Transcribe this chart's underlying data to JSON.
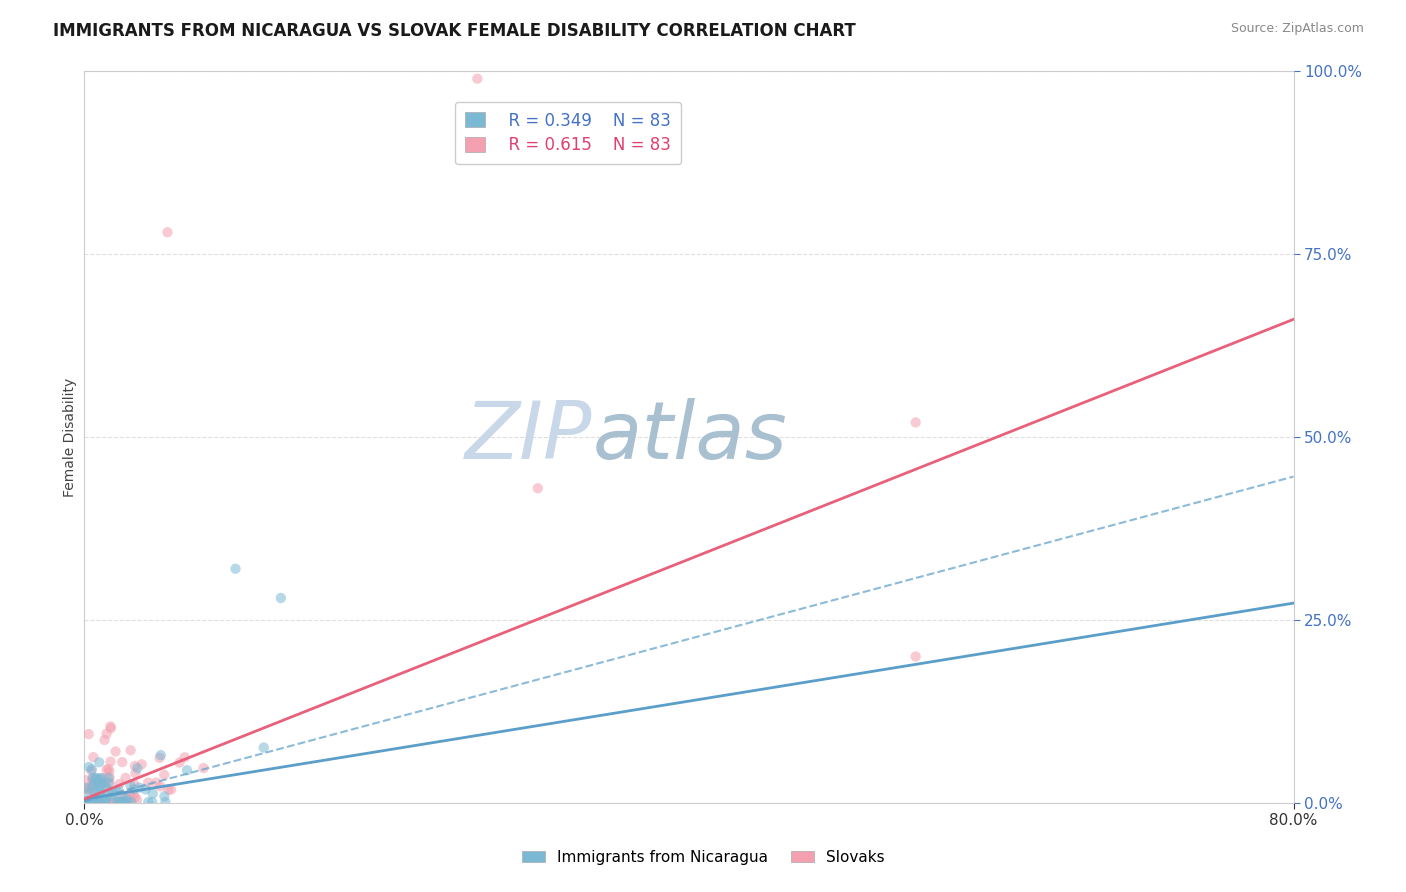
{
  "title": "IMMIGRANTS FROM NICARAGUA VS SLOVAK FEMALE DISABILITY CORRELATION CHART",
  "source": "Source: ZipAtlas.com",
  "ylabel": "Female Disability",
  "r_nicaragua": 0.349,
  "r_slovak": 0.615,
  "n": 83,
  "x_min": 0.0,
  "x_max": 0.8,
  "y_min": 0.0,
  "y_max": 1.0,
  "color_nicaragua": "#7bb8d4",
  "color_slovak": "#f4a0b0",
  "color_nicaragua_line": "#5b9ec9",
  "color_slovak_line": "#e8607a",
  "watermark_zip_color": "#c8d8e8",
  "watermark_atlas_color": "#a8c0d0",
  "background_color": "#ffffff",
  "grid_color": "#d8d8d8",
  "slope_nicaragua": 0.335,
  "intercept_nicaragua": 0.005,
  "slope_slovak": 0.82,
  "intercept_slovak": 0.005
}
